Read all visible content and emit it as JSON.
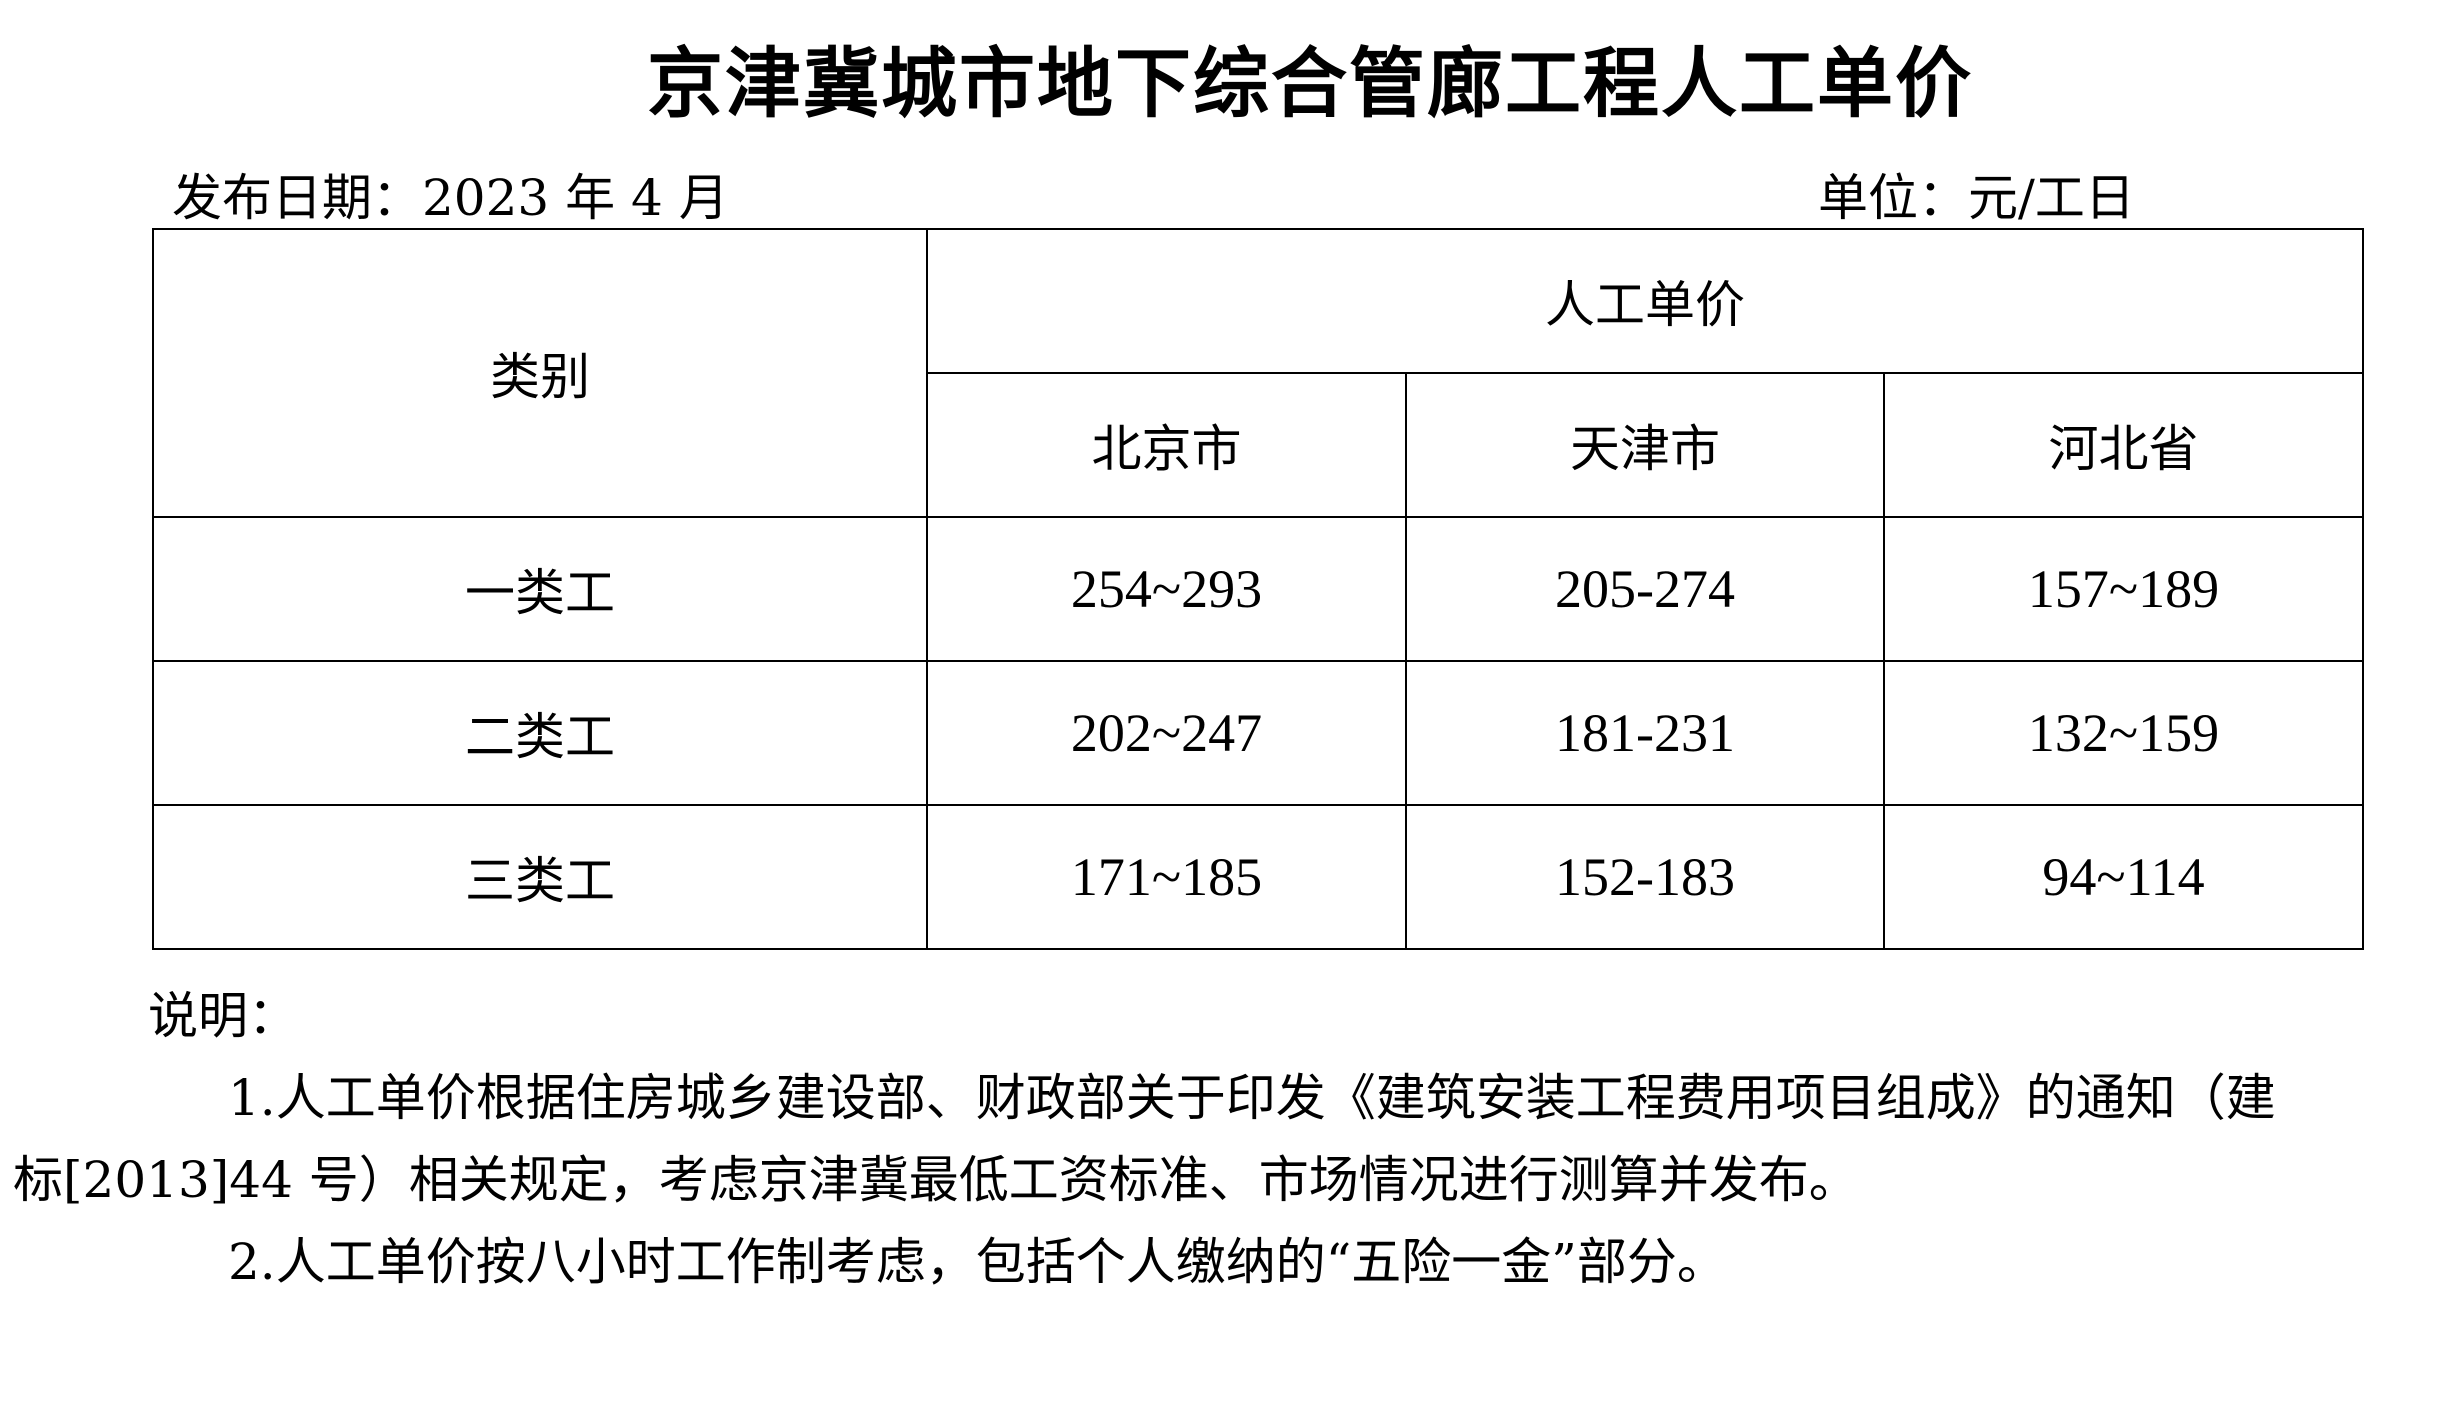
{
  "title": "京津冀城市地下综合管廊工程人工单价",
  "publish_date": "发布日期：2023 年 4 月",
  "unit": "单位：元/工日",
  "table": {
    "category_header": "类别",
    "price_header": "人工单价",
    "regions": [
      "北京市",
      "天津市",
      "河北省"
    ],
    "rows": [
      {
        "category": "一类工",
        "values": [
          "254~293",
          "205-274",
          "157~189"
        ]
      },
      {
        "category": "二类工",
        "values": [
          "202~247",
          "181-231",
          "132~159"
        ]
      },
      {
        "category": "三类工",
        "values": [
          "171~185",
          "152-183",
          "94~114"
        ]
      }
    ]
  },
  "notes": {
    "label": "说明：",
    "note1_line1": "1.人工单价根据住房城乡建设部、财政部关于印发《建筑安装工程费用项目组成》的通知（建",
    "note1_line2": "标[2013]44 号）相关规定，考虑京津冀最低工资标准、市场情况进行测算并发布。",
    "note2": "2.人工单价按八小时工作制考虑，包括个人缴纳的“五险一金”部分。"
  }
}
